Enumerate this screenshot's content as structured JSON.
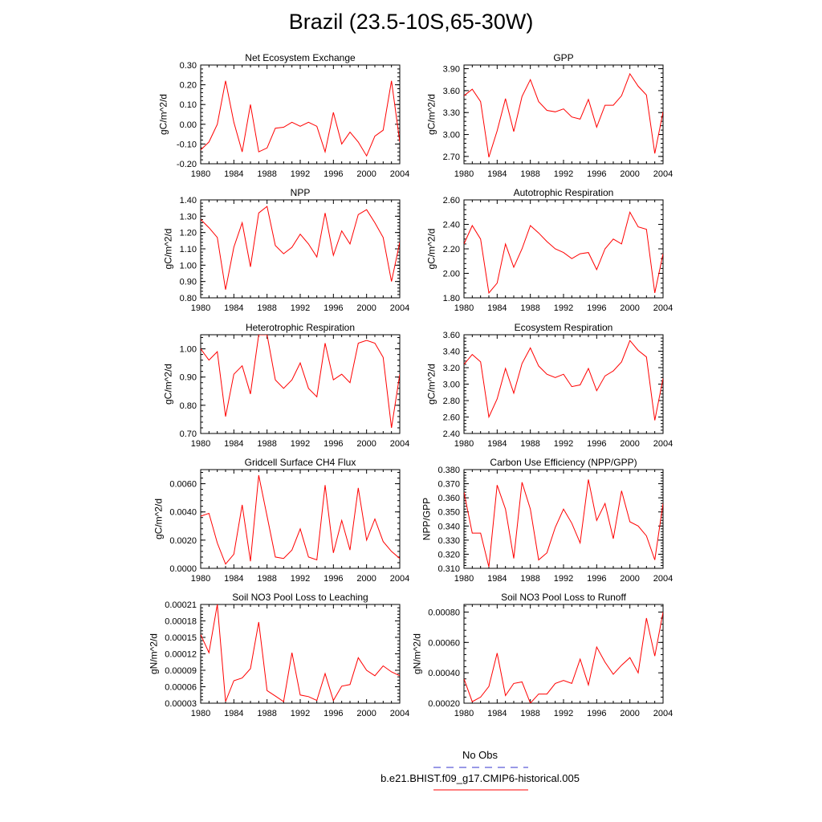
{
  "figure": {
    "title": "Brazil (23.5-10S,65-30W)",
    "line_color": "#ff0000",
    "obs_color": "#3333cc"
  },
  "legend": {
    "obs_label": "No Obs",
    "model_label": "b.e21.BHIST.f09_g17.CMIP6-historical.005"
  },
  "chart_data": [
    {
      "type": "line",
      "title": "Net Ecosystem Exchange",
      "ylabel": "gC/m^2/d",
      "xlim": [
        1980,
        2004
      ],
      "ylim": [
        -0.2,
        0.3
      ],
      "xticks": [
        "1980",
        "1984",
        "1988",
        "1992",
        "1996",
        "2000",
        "2004"
      ],
      "yticks": [
        "-0.20",
        "-0.10",
        "0.00",
        "0.10",
        "0.20",
        "0.30"
      ],
      "series": [
        {
          "x": [
            1980,
            1981,
            1982,
            1983,
            1984,
            1985,
            1986,
            1987,
            1988,
            1989,
            1990,
            1991,
            1992,
            1993,
            1994,
            1995,
            1996,
            1997,
            1998,
            1999,
            2000,
            2001,
            2002,
            2003,
            2004
          ],
          "values": [
            -0.13,
            -0.09,
            0.0,
            0.22,
            0.01,
            -0.14,
            0.1,
            -0.14,
            -0.12,
            -0.02,
            -0.015,
            0.01,
            -0.01,
            0.01,
            -0.01,
            -0.14,
            0.06,
            -0.1,
            -0.04,
            -0.09,
            -0.16,
            -0.06,
            -0.03,
            0.22,
            -0.09
          ]
        }
      ]
    },
    {
      "type": "line",
      "title": "GPP",
      "ylabel": "gC/m^2/d",
      "xlim": [
        1980,
        2004
      ],
      "ylim": [
        2.6,
        3.95
      ],
      "xticks": [
        "1980",
        "1984",
        "1988",
        "1992",
        "1996",
        "2000",
        "2004"
      ],
      "yticks": [
        "2.70",
        "3.00",
        "3.30",
        "3.60",
        "3.90"
      ],
      "series": [
        {
          "x": [
            1980,
            1981,
            1982,
            1983,
            1984,
            1985,
            1986,
            1987,
            1988,
            1989,
            1990,
            1991,
            1992,
            1993,
            1994,
            1995,
            1996,
            1997,
            1998,
            1999,
            2000,
            2001,
            2002,
            2003,
            2004
          ],
          "values": [
            3.53,
            3.62,
            3.45,
            2.69,
            3.05,
            3.49,
            3.04,
            3.52,
            3.75,
            3.45,
            3.33,
            3.31,
            3.35,
            3.24,
            3.21,
            3.48,
            3.1,
            3.4,
            3.4,
            3.53,
            3.83,
            3.66,
            3.54,
            2.74,
            3.31
          ]
        }
      ]
    },
    {
      "type": "line",
      "title": "NPP",
      "ylabel": "gC/m^2/d",
      "xlim": [
        1980,
        2004
      ],
      "ylim": [
        0.8,
        1.4
      ],
      "xticks": [
        "1980",
        "1984",
        "1988",
        "1992",
        "1996",
        "2000",
        "2004"
      ],
      "yticks": [
        "0.80",
        "0.90",
        "1.00",
        "1.10",
        "1.20",
        "1.30",
        "1.40"
      ],
      "series": [
        {
          "x": [
            1980,
            1981,
            1982,
            1983,
            1984,
            1985,
            1986,
            1987,
            1988,
            1989,
            1990,
            1991,
            1992,
            1993,
            1994,
            1995,
            1996,
            1997,
            1998,
            1999,
            2000,
            2001,
            2002,
            2003,
            2004
          ],
          "values": [
            1.28,
            1.23,
            1.17,
            0.85,
            1.11,
            1.26,
            0.99,
            1.32,
            1.36,
            1.12,
            1.07,
            1.11,
            1.19,
            1.13,
            1.05,
            1.32,
            1.06,
            1.21,
            1.13,
            1.31,
            1.34,
            1.26,
            1.17,
            0.9,
            1.14
          ]
        }
      ]
    },
    {
      "type": "line",
      "title": "Autotrophic Respiration",
      "ylabel": "gC/m^2/d",
      "xlim": [
        1980,
        2004
      ],
      "ylim": [
        1.8,
        2.6
      ],
      "xticks": [
        "1980",
        "1984",
        "1988",
        "1992",
        "1996",
        "2000",
        "2004"
      ],
      "yticks": [
        "1.80",
        "2.00",
        "2.20",
        "2.40",
        "2.60"
      ],
      "series": [
        {
          "x": [
            1980,
            1981,
            1982,
            1983,
            1984,
            1985,
            1986,
            1987,
            1988,
            1989,
            1990,
            1991,
            1992,
            1993,
            1994,
            1995,
            1996,
            1997,
            1998,
            1999,
            2000,
            2001,
            2002,
            2003,
            2004
          ],
          "values": [
            2.24,
            2.39,
            2.28,
            1.84,
            1.92,
            2.24,
            2.05,
            2.2,
            2.39,
            2.33,
            2.26,
            2.2,
            2.17,
            2.12,
            2.16,
            2.17,
            2.03,
            2.2,
            2.28,
            2.24,
            2.5,
            2.38,
            2.36,
            1.84,
            2.16
          ]
        }
      ]
    },
    {
      "type": "line",
      "title": "Heterotrophic Respiration",
      "ylabel": "gC/m^2/d",
      "xlim": [
        1980,
        2004
      ],
      "ylim": [
        0.7,
        1.05
      ],
      "xticks": [
        "1980",
        "1984",
        "1988",
        "1992",
        "1996",
        "2000",
        "2004"
      ],
      "yticks": [
        "0.70",
        "0.80",
        "0.90",
        "1.00"
      ],
      "series": [
        {
          "x": [
            1980,
            1981,
            1982,
            1983,
            1984,
            1985,
            1986,
            1987,
            1988,
            1989,
            1990,
            1991,
            1992,
            1993,
            1994,
            1995,
            1996,
            1997,
            1998,
            1999,
            2000,
            2001,
            2002,
            2003,
            2004
          ],
          "values": [
            1.0,
            0.96,
            0.99,
            0.76,
            0.91,
            0.94,
            0.84,
            1.05,
            1.05,
            0.89,
            0.86,
            0.89,
            0.95,
            0.86,
            0.83,
            1.02,
            0.89,
            0.91,
            0.88,
            1.02,
            1.03,
            1.02,
            0.97,
            0.72,
            0.91
          ]
        }
      ]
    },
    {
      "type": "line",
      "title": "Ecosystem Respiration",
      "ylabel": "gC/m^2/d",
      "xlim": [
        1980,
        2004
      ],
      "ylim": [
        2.4,
        3.6
      ],
      "xticks": [
        "1980",
        "1984",
        "1988",
        "1992",
        "1996",
        "2000",
        "2004"
      ],
      "yticks": [
        "2.40",
        "2.60",
        "2.80",
        "3.00",
        "3.20",
        "3.40",
        "3.60"
      ],
      "series": [
        {
          "x": [
            1980,
            1981,
            1982,
            1983,
            1984,
            1985,
            1986,
            1987,
            1988,
            1989,
            1990,
            1991,
            1992,
            1993,
            1994,
            1995,
            1996,
            1997,
            1998,
            1999,
            2000,
            2001,
            2002,
            2003,
            2004
          ],
          "values": [
            3.24,
            3.36,
            3.27,
            2.6,
            2.82,
            3.19,
            2.89,
            3.25,
            3.44,
            3.22,
            3.12,
            3.08,
            3.12,
            2.97,
            2.99,
            3.19,
            2.92,
            3.1,
            3.16,
            3.27,
            3.53,
            3.41,
            3.33,
            2.56,
            3.07
          ]
        }
      ]
    },
    {
      "type": "line",
      "title": "Gridcell Surface CH4 Flux",
      "ylabel": "gC/m^2/d",
      "xlim": [
        1980,
        2004
      ],
      "ylim": [
        0.0,
        0.007
      ],
      "xticks": [
        "1980",
        "1984",
        "1988",
        "1992",
        "1996",
        "2000",
        "2004"
      ],
      "yticks": [
        "0.0000",
        "0.0020",
        "0.0040",
        "0.0060"
      ],
      "series": [
        {
          "x": [
            1980,
            1981,
            1982,
            1983,
            1984,
            1985,
            1986,
            1987,
            1988,
            1989,
            1990,
            1991,
            1992,
            1993,
            1994,
            1995,
            1996,
            1997,
            1998,
            1999,
            2000,
            2001,
            2002,
            2003,
            2004
          ],
          "values": [
            0.0037,
            0.0039,
            0.0018,
            0.0003,
            0.001,
            0.0045,
            0.0005,
            0.0066,
            0.0037,
            0.0008,
            0.0007,
            0.0013,
            0.0028,
            0.0008,
            0.0006,
            0.0059,
            0.0011,
            0.0034,
            0.0013,
            0.0057,
            0.002,
            0.0035,
            0.0019,
            0.0012,
            0.0007
          ]
        }
      ]
    },
    {
      "type": "line",
      "title": "Carbon Use Efficiency (NPP/GPP)",
      "ylabel": "NPP/GPP",
      "xlim": [
        1980,
        2004
      ],
      "ylim": [
        0.31,
        0.38
      ],
      "xticks": [
        "1980",
        "1984",
        "1988",
        "1992",
        "1996",
        "2000",
        "2004"
      ],
      "yticks": [
        "0.310",
        "0.320",
        "0.330",
        "0.340",
        "0.350",
        "0.360",
        "0.370",
        "0.380"
      ],
      "series": [
        {
          "x": [
            1980,
            1981,
            1982,
            1983,
            1984,
            1985,
            1986,
            1987,
            1988,
            1989,
            1990,
            1991,
            1992,
            1993,
            1994,
            1995,
            1996,
            1997,
            1998,
            1999,
            2000,
            2001,
            2002,
            2003,
            2004
          ],
          "values": [
            0.364,
            0.335,
            0.335,
            0.311,
            0.369,
            0.352,
            0.317,
            0.371,
            0.352,
            0.316,
            0.321,
            0.339,
            0.352,
            0.342,
            0.328,
            0.373,
            0.344,
            0.356,
            0.331,
            0.365,
            0.343,
            0.34,
            0.333,
            0.316,
            0.356
          ]
        }
      ]
    },
    {
      "type": "line",
      "title": "Soil NO3 Pool Loss to Leaching",
      "ylabel": "gN/m^2/d",
      "xlim": [
        1980,
        2004
      ],
      "ylim": [
        3e-05,
        0.00021
      ],
      "xticks": [
        "1980",
        "1984",
        "1988",
        "1992",
        "1996",
        "2000",
        "2004"
      ],
      "yticks": [
        "0.00003",
        "0.00006",
        "0.00009",
        "0.00012",
        "0.00015",
        "0.00018",
        "0.00021"
      ],
      "series": [
        {
          "x": [
            1980,
            1981,
            1982,
            1983,
            1984,
            1985,
            1986,
            1987,
            1988,
            1989,
            1990,
            1991,
            1992,
            1993,
            1994,
            1995,
            1996,
            1997,
            1998,
            1999,
            2000,
            2001,
            2002,
            2003,
            2004
          ],
          "values": [
            0.000155,
            0.000122,
            0.00021,
            3.3e-05,
            7.1e-05,
            7.6e-05,
            9.3e-05,
            0.000178,
            5.3e-05,
            4.3e-05,
            3.3e-05,
            0.000122,
            4.5e-05,
            4.2e-05,
            3.5e-05,
            8.4e-05,
            3.5e-05,
            6.1e-05,
            6.4e-05,
            0.000113,
            9e-05,
            8e-05,
            9.8e-05,
            8.7e-05,
            8e-05
          ]
        }
      ]
    },
    {
      "type": "line",
      "title": "Soil NO3 Pool Loss to Runoff",
      "ylabel": "gN/m^2/d",
      "xlim": [
        1980,
        2004
      ],
      "ylim": [
        0.0002,
        0.00085
      ],
      "xticks": [
        "1980",
        "1984",
        "1988",
        "1992",
        "1996",
        "2000",
        "2004"
      ],
      "yticks": [
        "0.00020",
        "0.00040",
        "0.00060",
        "0.00080"
      ],
      "series": [
        {
          "x": [
            1980,
            1981,
            1982,
            1983,
            1984,
            1985,
            1986,
            1987,
            1988,
            1989,
            1990,
            1991,
            1992,
            1993,
            1994,
            1995,
            1996,
            1997,
            1998,
            1999,
            2000,
            2001,
            2002,
            2003,
            2004
          ],
          "values": [
            0.00036,
            0.00021,
            0.00024,
            0.00031,
            0.00053,
            0.00025,
            0.00033,
            0.00034,
            0.0002,
            0.00026,
            0.00026,
            0.00033,
            0.00035,
            0.00033,
            0.00049,
            0.00032,
            0.00057,
            0.00047,
            0.00039,
            0.00045,
            0.0005,
            0.0004,
            0.00076,
            0.00051,
            0.0008
          ]
        }
      ]
    }
  ]
}
